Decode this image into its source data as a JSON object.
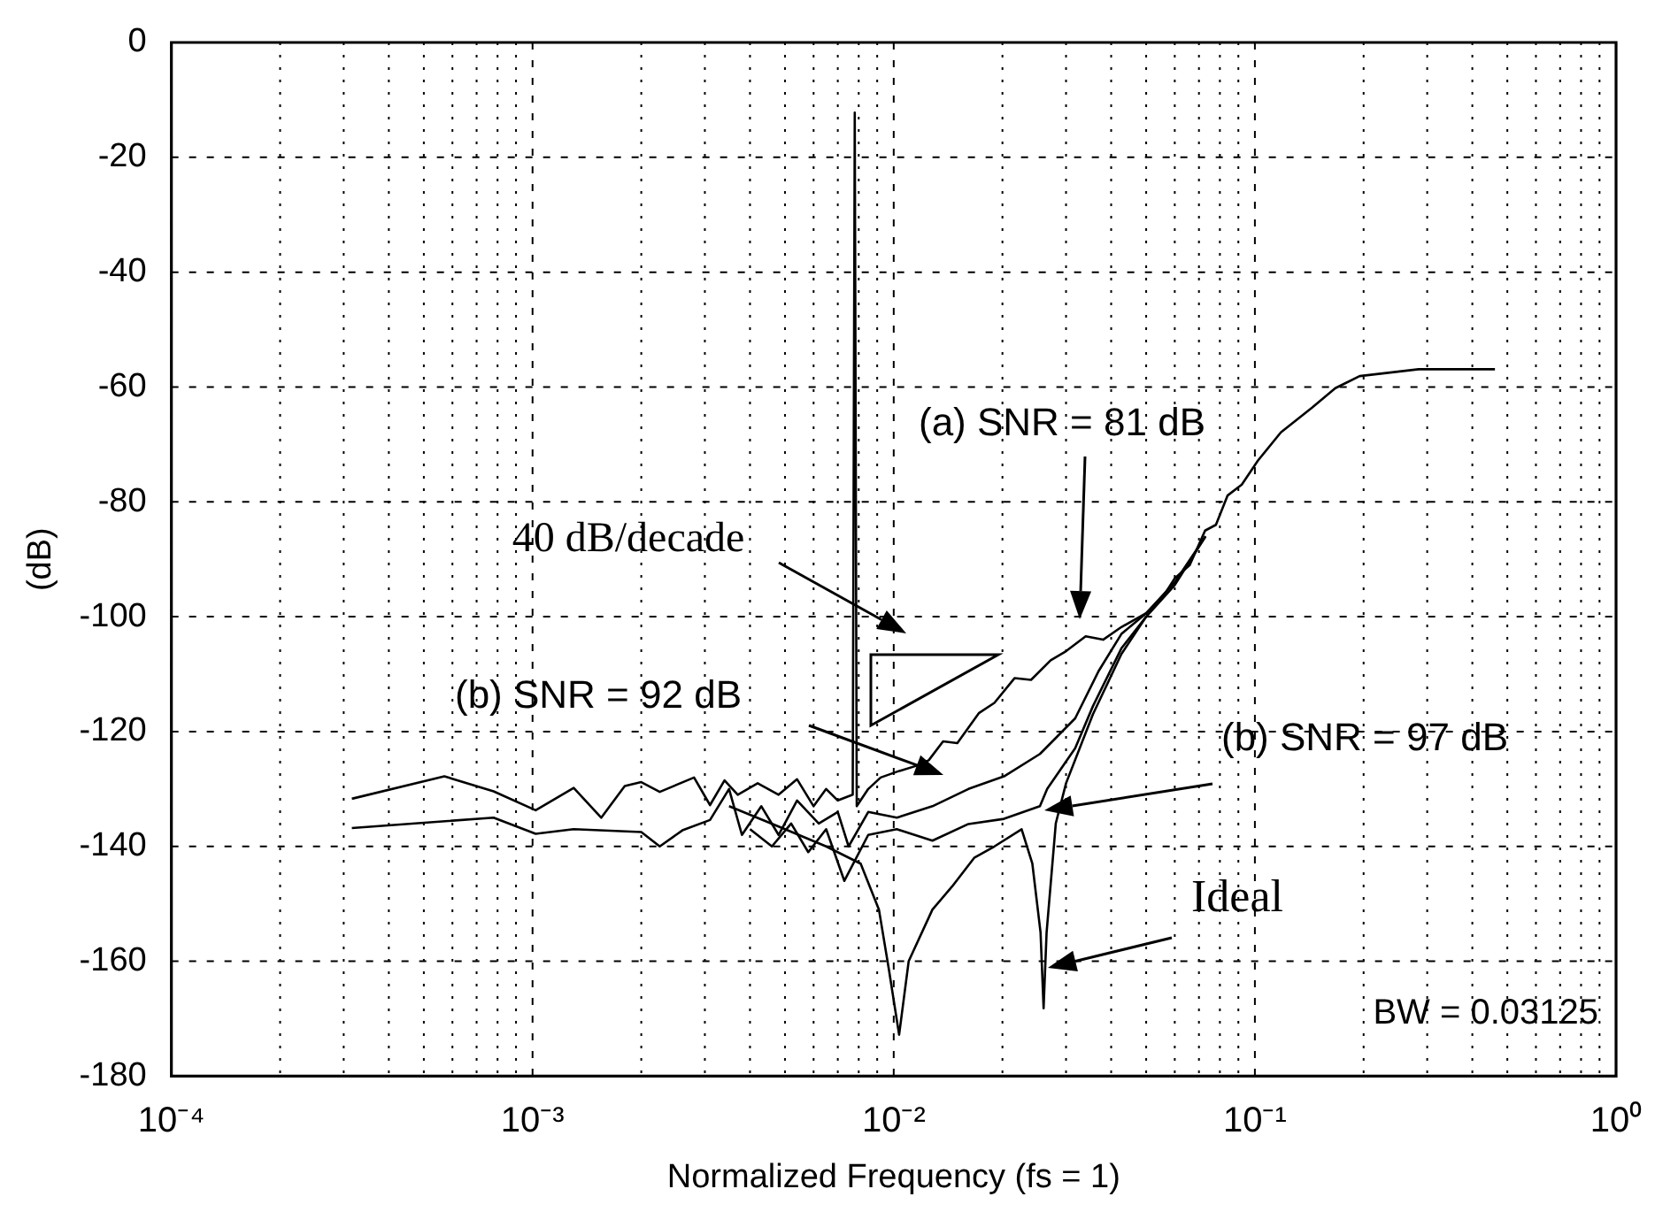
{
  "chart_data": {
    "type": "line",
    "xlabel": "Normalized Frequency (fs = 1)",
    "ylabel": "(dB)",
    "log": "x",
    "grid": true,
    "marker": "none",
    "line_style": "solid",
    "xlim": [
      0.0001,
      1
    ],
    "ylim": [
      -180,
      0
    ],
    "xticks": [
      {
        "value": 0.0001,
        "label": "10⁻⁴"
      },
      {
        "value": 0.0002,
        "label": null
      },
      {
        "value": 0.0003,
        "label": null
      },
      {
        "value": 0.0004,
        "label": null
      },
      {
        "value": 0.0005,
        "label": null
      },
      {
        "value": 0.0006,
        "label": null
      },
      {
        "value": 0.0007,
        "label": null
      },
      {
        "value": 0.0008,
        "label": null
      },
      {
        "value": 0.0009,
        "label": null
      },
      {
        "value": 0.001,
        "label": "10⁻³"
      },
      {
        "value": 0.002,
        "label": null
      },
      {
        "value": 0.003,
        "label": null
      },
      {
        "value": 0.004,
        "label": null
      },
      {
        "value": 0.005,
        "label": null
      },
      {
        "value": 0.006,
        "label": null
      },
      {
        "value": 0.007,
        "label": null
      },
      {
        "value": 0.008,
        "label": null
      },
      {
        "value": 0.009,
        "label": null
      },
      {
        "value": 0.01,
        "label": "10⁻²"
      },
      {
        "value": 0.02,
        "label": null
      },
      {
        "value": 0.03,
        "label": null
      },
      {
        "value": 0.04,
        "label": null
      },
      {
        "value": 0.05,
        "label": null
      },
      {
        "value": 0.06,
        "label": null
      },
      {
        "value": 0.07,
        "label": null
      },
      {
        "value": 0.08,
        "label": null
      },
      {
        "value": 0.09,
        "label": null
      },
      {
        "value": 0.1,
        "label": "10⁻¹"
      },
      {
        "value": 0.2,
        "label": null
      },
      {
        "value": 0.3,
        "label": null
      },
      {
        "value": 0.4,
        "label": null
      },
      {
        "value": 0.5,
        "label": null
      },
      {
        "value": 0.6,
        "label": null
      },
      {
        "value": 0.7,
        "label": null
      },
      {
        "value": 0.8,
        "label": null
      },
      {
        "value": 0.9,
        "label": null
      },
      {
        "value": 1,
        "label": "10⁰"
      }
    ],
    "yticks": [
      -180,
      -160,
      -140,
      -120,
      -100,
      -80,
      -60,
      -40,
      -20,
      0
    ],
    "series": [
      {
        "color": "#000000",
        "x": [
          0.000316,
          0.00057,
          0.00078,
          0.00102,
          0.0013,
          0.00155,
          0.0018,
          0.002,
          0.00225,
          0.0028,
          0.0031,
          0.0034,
          0.0037,
          0.0042,
          0.0048,
          0.0054,
          0.006,
          0.0065,
          0.007,
          0.0077,
          0.0078,
          0.0079,
          0.0085,
          0.0092,
          0.0102,
          0.0115,
          0.0125,
          0.0137,
          0.015,
          0.0172,
          0.019,
          0.0216,
          0.024,
          0.0272,
          0.03,
          0.034,
          0.038,
          0.0427,
          0.05,
          0.055,
          0.06,
          0.066,
          0.0728,
          0.078,
          0.084,
          0.092,
          0.102,
          0.118,
          0.144,
          0.167,
          0.195,
          0.284,
          0.462
        ],
        "values": [
          -131.7,
          -127.8,
          -130.4,
          -133.7,
          -129.8,
          -135,
          -129.5,
          -128.8,
          -130.5,
          -128,
          -132.8,
          -128.5,
          -131,
          -129,
          -131,
          -128.3,
          -133,
          -130,
          -132,
          -131,
          -12.2,
          -133,
          -130,
          -128,
          -127,
          -126,
          -125,
          -121.7,
          -122,
          -116.8,
          -115,
          -110.7,
          -111,
          -107.6,
          -106,
          -103.4,
          -104,
          -101.8,
          -99.4,
          -97,
          -93.3,
          -91,
          -85,
          -84,
          -78.9,
          -77,
          -72.8,
          -67.9,
          -63.6,
          -60.2,
          -58.1,
          -56.9,
          -56.9
        ]
      },
      {
        "color": "#000000",
        "x": [
          0.000316,
          0.00078,
          0.00102,
          0.0013,
          0.002,
          0.00225,
          0.0026,
          0.0031,
          0.0035,
          0.0038,
          0.0043,
          0.0048,
          0.0054,
          0.0062,
          0.007,
          0.0075,
          0.0085,
          0.0102,
          0.0128,
          0.0161,
          0.0202,
          0.0254,
          0.0318,
          0.0369,
          0.0427,
          0.05,
          0.06,
          0.073
        ],
        "values": [
          -136.8,
          -135,
          -137.8,
          -137,
          -137.5,
          -140,
          -137.2,
          -135.4,
          -130,
          -138,
          -133,
          -138,
          -132,
          -136,
          -134,
          -140,
          -134,
          -135,
          -133,
          -130,
          -127.8,
          -123.9,
          -117.7,
          -109.5,
          -103,
          -99.4,
          -94,
          -86
        ]
      },
      {
        "color": "#000000",
        "x": [
          0.004,
          0.0046,
          0.0052,
          0.0058,
          0.0065,
          0.0073,
          0.0085,
          0.0102,
          0.0128,
          0.0161,
          0.0202,
          0.0254,
          0.0266,
          0.0318,
          0.0356,
          0.0427,
          0.05,
          0.06,
          0.073
        ],
        "values": [
          -137,
          -140,
          -136,
          -141,
          -137,
          -146,
          -138,
          -137,
          -139,
          -136.1,
          -135.2,
          -133,
          -130,
          -122.9,
          -115.6,
          -105.5,
          -100,
          -94.5,
          -86
        ]
      },
      {
        "color": "#000000",
        "x": [
          0.0035,
          0.005,
          0.0065,
          0.0081,
          0.0091,
          0.0097,
          0.01035,
          0.011,
          0.0128,
          0.0145,
          0.0167,
          0.019,
          0.0226,
          0.0242,
          0.0255,
          0.026,
          0.0265,
          0.0281,
          0.03,
          0.0356,
          0.0427,
          0.05
        ],
        "values": [
          -133,
          -137,
          -140,
          -143,
          -151,
          -161.5,
          -172.8,
          -160,
          -151,
          -147,
          -142,
          -140,
          -137,
          -143,
          -155,
          -168.2,
          -155,
          -136,
          -129,
          -117,
          -106.5,
          -100
        ]
      }
    ],
    "annotations": [
      "(a) SNR = 81 dB",
      "40 dB/decade",
      "(b) SNR = 92 dB",
      "(b) SNR = 97 dB",
      "Ideal",
      "BW = 0.03125"
    ]
  }
}
